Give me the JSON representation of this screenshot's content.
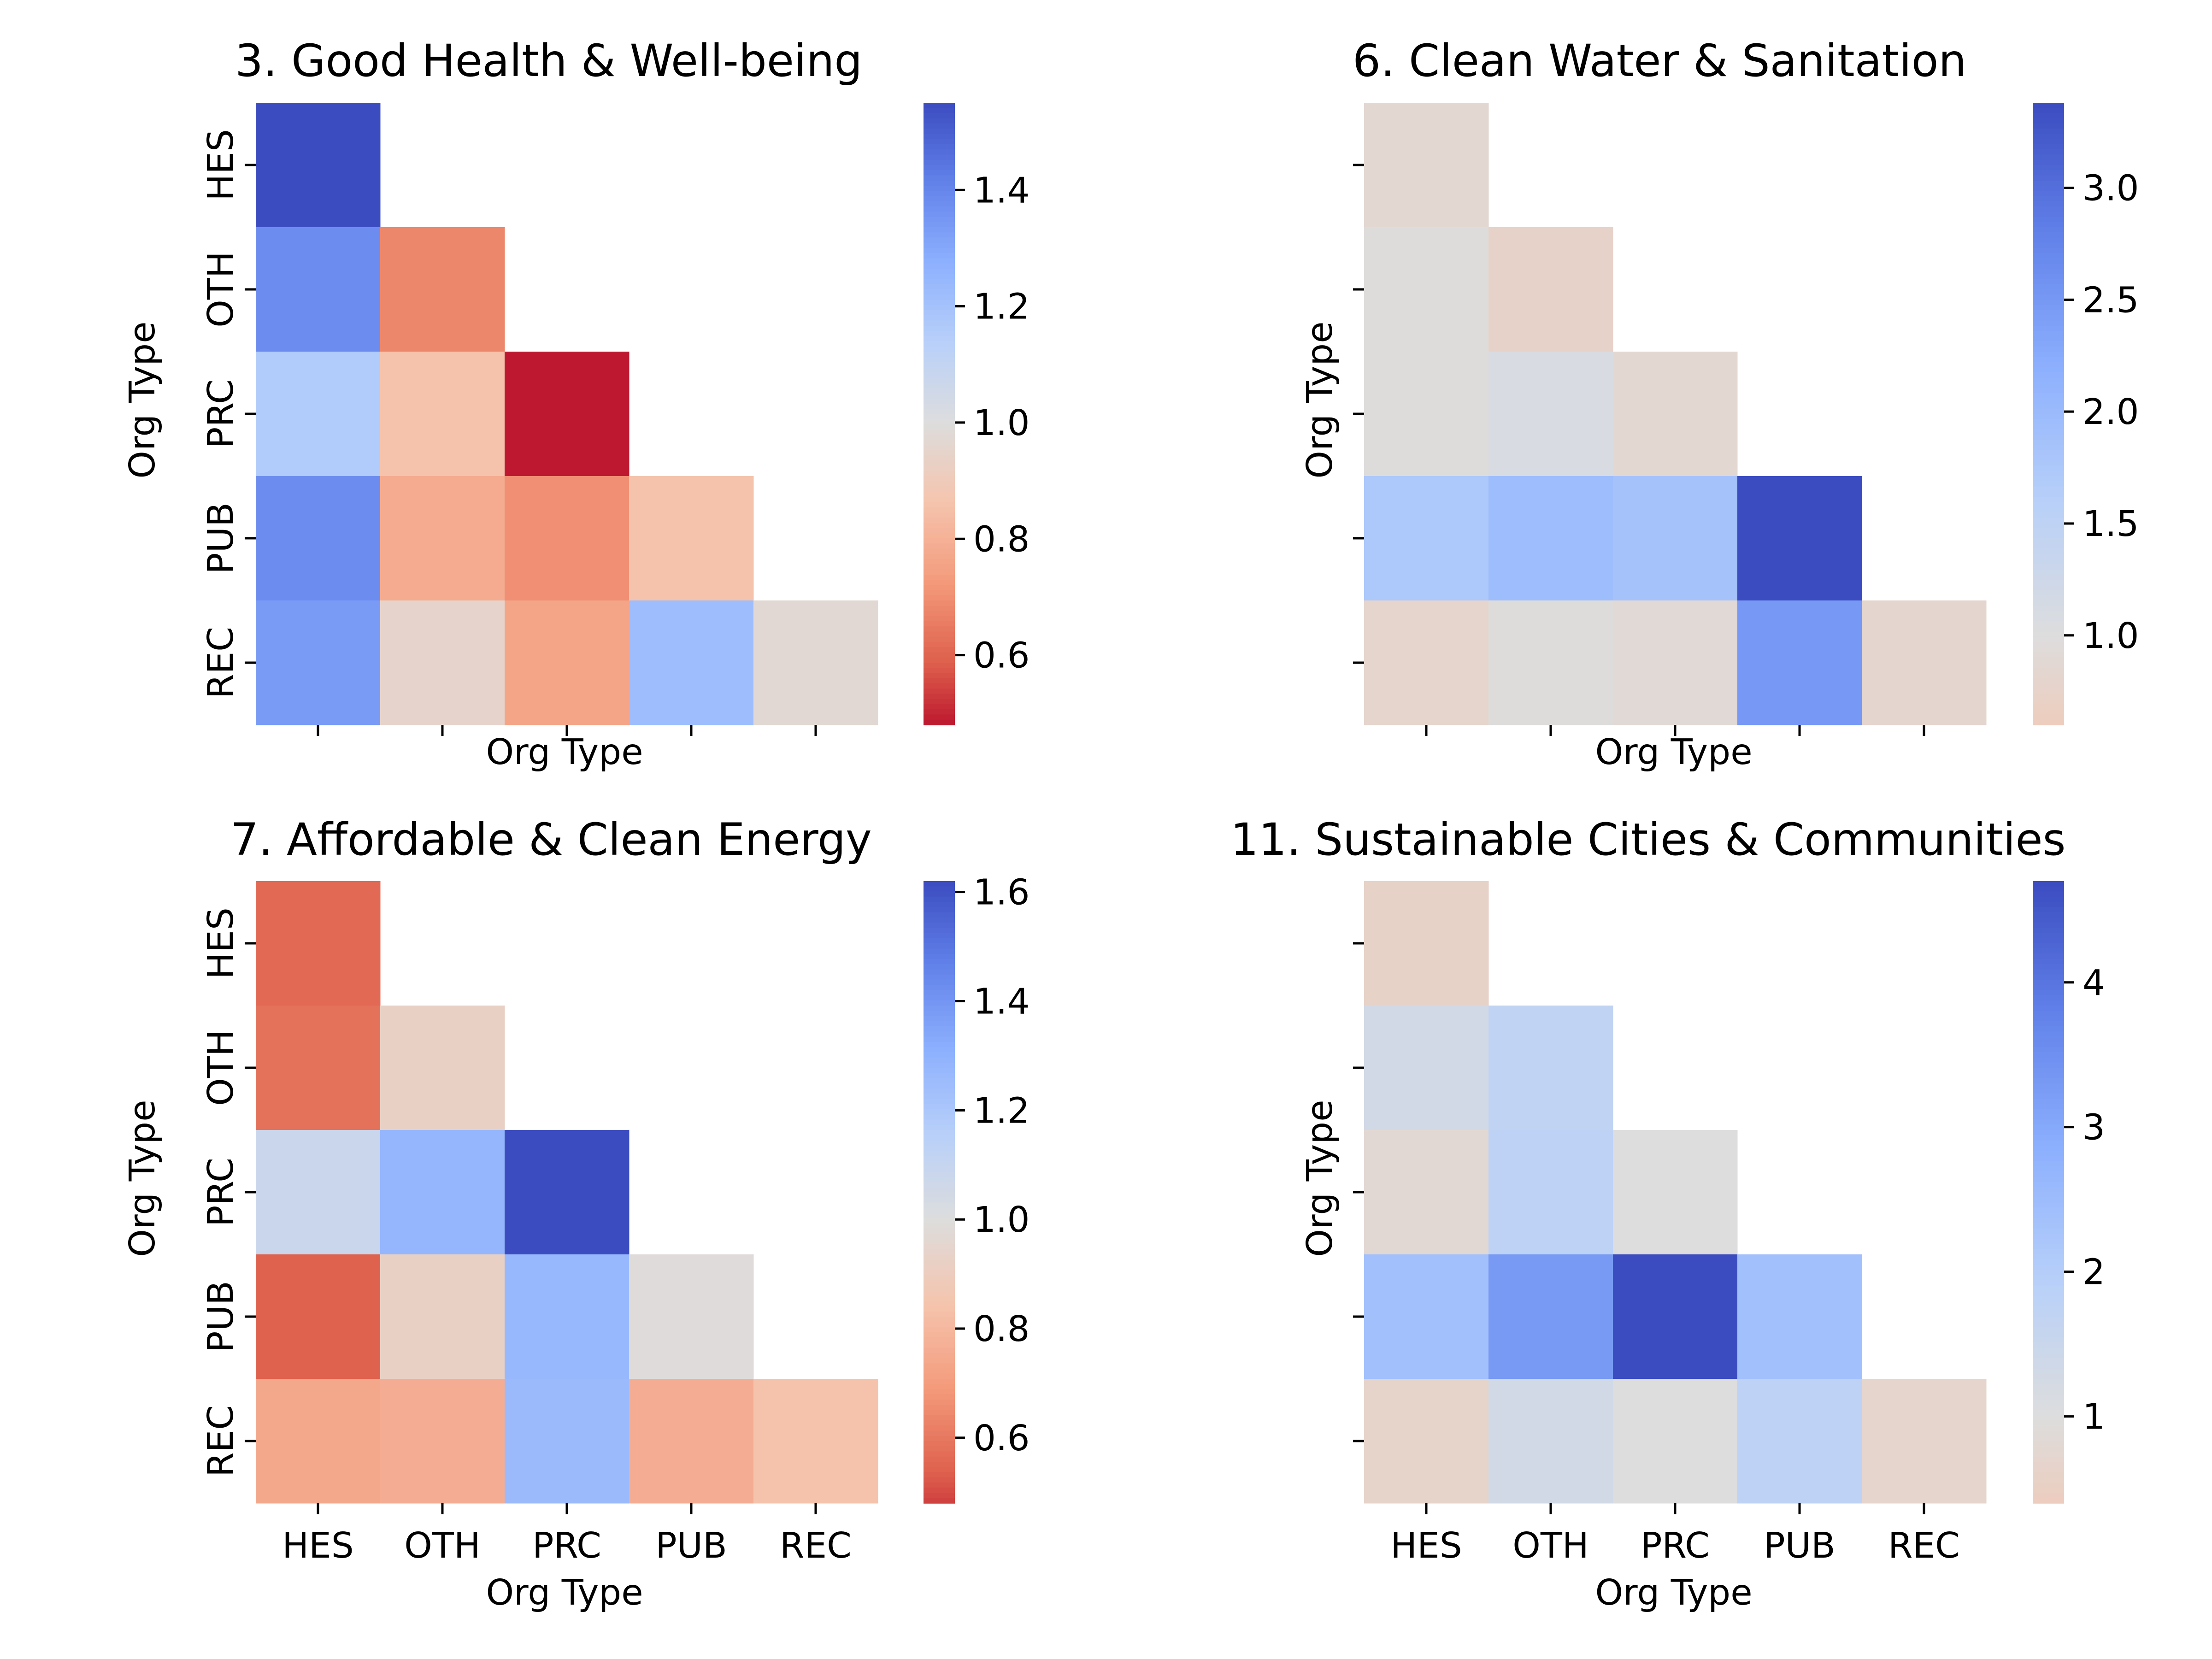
{
  "chart_data": [
    {
      "type": "heatmap",
      "title": "3. Good Health & Well-being",
      "xlabel": "Org Type",
      "ylabel": "Org Type",
      "categories": [
        "HES",
        "OTH",
        "PRC",
        "PUB",
        "REC"
      ],
      "show_xticklabels": false,
      "show_yticklabels": true,
      "mask": "upper-triangle",
      "values": [
        [
          1.55,
          null,
          null,
          null,
          null
        ],
        [
          1.38,
          0.68,
          null,
          null,
          null
        ],
        [
          1.16,
          0.86,
          0.48,
          null,
          null
        ],
        [
          1.38,
          0.78,
          0.7,
          0.86,
          null
        ],
        [
          1.34,
          0.95,
          0.76,
          1.22,
          0.97
        ]
      ],
      "colorbar": {
        "min": 0.48,
        "max": 1.55,
        "center": 1.0,
        "ticks": [
          "0.6",
          "0.8",
          "1.0",
          "1.2",
          "1.4"
        ]
      },
      "colormap": "coolwarm_r"
    },
    {
      "type": "heatmap",
      "title": "6. Clean Water & Sanitation",
      "xlabel": "Org Type",
      "ylabel": "Org Type",
      "categories": [
        "HES",
        "OTH",
        "PRC",
        "PUB",
        "REC"
      ],
      "show_xticklabels": false,
      "show_yticklabels": false,
      "mask": "upper-triangle",
      "values": [
        [
          0.85,
          null,
          null,
          null,
          null
        ],
        [
          0.98,
          0.75,
          null,
          null,
          null
        ],
        [
          0.98,
          1.08,
          0.85,
          null,
          null
        ],
        [
          1.75,
          1.95,
          1.85,
          3.38,
          null
        ],
        [
          0.8,
          0.97,
          0.9,
          2.5,
          0.82
        ]
      ],
      "colorbar": {
        "min": 0.6,
        "max": 3.38,
        "center": 1.0,
        "ticks": [
          "1.0",
          "1.5",
          "2.0",
          "2.5",
          "3.0"
        ]
      },
      "colormap": "coolwarm_r"
    },
    {
      "type": "heatmap",
      "title": "7. Affordable & Clean Energy",
      "xlabel": "Org Type",
      "ylabel": "Org Type",
      "categories": [
        "HES",
        "OTH",
        "PRC",
        "PUB",
        "REC"
      ],
      "show_xticklabels": true,
      "show_yticklabels": true,
      "mask": "upper-triangle",
      "values": [
        [
          0.56,
          null,
          null,
          null,
          null
        ],
        [
          0.58,
          0.92,
          null,
          null,
          null
        ],
        [
          1.08,
          1.28,
          1.62,
          null,
          null
        ],
        [
          0.54,
          0.92,
          1.27,
          0.99,
          null
        ],
        [
          0.74,
          0.76,
          1.26,
          0.76,
          0.84
        ]
      ],
      "colorbar": {
        "min": 0.48,
        "max": 1.62,
        "center": 1.0,
        "ticks": [
          "0.6",
          "0.8",
          "1.0",
          "1.2",
          "1.4",
          "1.6"
        ]
      },
      "colormap": "coolwarm_r"
    },
    {
      "type": "heatmap",
      "title": "11.  Sustainable Cities & Communities",
      "xlabel": "Org Type",
      "ylabel": "Org Type",
      "categories": [
        "HES",
        "OTH",
        "PRC",
        "PUB",
        "REC"
      ],
      "show_xticklabels": true,
      "show_yticklabels": false,
      "mask": "upper-triangle",
      "values": [
        [
          0.6,
          null,
          null,
          null,
          null
        ],
        [
          1.3,
          1.7,
          null,
          null,
          null
        ],
        [
          0.8,
          1.8,
          1.0,
          null,
          null
        ],
        [
          2.4,
          3.3,
          4.7,
          2.4,
          null
        ],
        [
          0.65,
          1.3,
          1.0,
          1.8,
          0.7
        ]
      ],
      "colorbar": {
        "min": 0.4,
        "max": 4.7,
        "center": 1.0,
        "ticks": [
          "1",
          "2",
          "3",
          "4"
        ]
      },
      "colormap": "coolwarm_r"
    }
  ]
}
